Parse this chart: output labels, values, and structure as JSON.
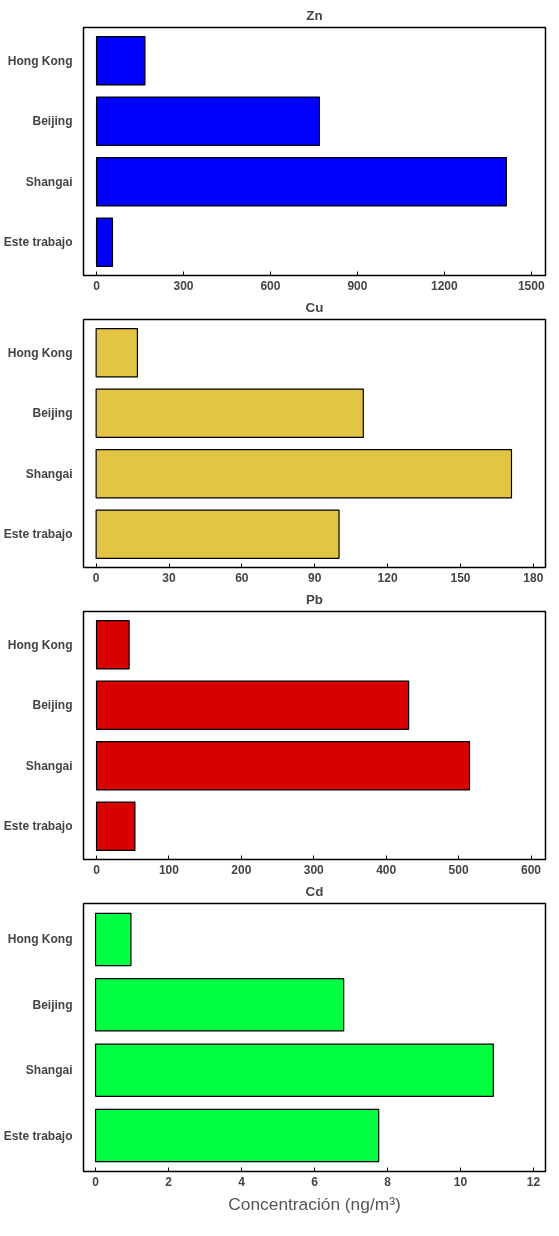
{
  "chart_data": [
    {
      "type": "bar",
      "orientation": "horizontal",
      "title": "Zn",
      "categories": [
        "Hong Kong",
        "Beijing",
        "Shangai",
        "Este trabajo"
      ],
      "values": [
        167,
        769,
        1414,
        55
      ],
      "color": "#0000ff",
      "xlim": [
        -45,
        1549
      ],
      "xticks": [
        0,
        300,
        600,
        900,
        1200,
        1500
      ],
      "grid": false,
      "legend": false
    },
    {
      "type": "bar",
      "orientation": "horizontal",
      "title": "Cu",
      "categories": [
        "Hong Kong",
        "Beijing",
        "Shangai",
        "Este trabajo"
      ],
      "values": [
        17,
        110,
        171,
        100
      ],
      "color": "#e3c443",
      "xlim": [
        -5.2,
        185
      ],
      "xticks": [
        0,
        30,
        60,
        90,
        120,
        150,
        180
      ],
      "grid": false,
      "legend": false
    },
    {
      "type": "bar",
      "orientation": "horizontal",
      "title": "Pb",
      "categories": [
        "Hong Kong",
        "Beijing",
        "Shangai",
        "Este trabajo"
      ],
      "values": [
        45,
        431,
        515,
        53
      ],
      "color": "#d90000",
      "xlim": [
        -18,
        620
      ],
      "xticks": [
        0,
        100,
        200,
        300,
        400,
        500,
        600
      ],
      "grid": false,
      "legend": false
    },
    {
      "type": "bar",
      "orientation": "horizontal",
      "title": "Cd",
      "categories": [
        "Hong Kong",
        "Beijing",
        "Shangai",
        "Este trabajo"
      ],
      "values": [
        0.97,
        6.8,
        10.9,
        7.76
      ],
      "color": "#00ff40",
      "xlim": [
        -0.33,
        12.33
      ],
      "xticks": [
        0,
        2,
        4,
        6,
        8,
        10,
        12
      ],
      "grid": false,
      "legend": false,
      "xlabel": "Concentración (ng/m³)"
    }
  ]
}
